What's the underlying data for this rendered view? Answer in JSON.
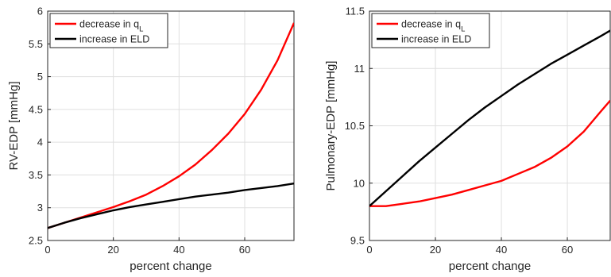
{
  "chart_data": [
    {
      "type": "line",
      "xlabel": "percent change",
      "ylabel": "RV-EDP [mmHg]",
      "xlim": [
        0,
        75
      ],
      "ylim": [
        2.5,
        6
      ],
      "xticks": [
        "0",
        "20",
        "40",
        "60"
      ],
      "yticks": [
        "2.5",
        "3",
        "3.5",
        "4",
        "4.5",
        "5",
        "5.5",
        "6"
      ],
      "grid": true,
      "legend_position": "top-left",
      "series": [
        {
          "name": "decrease in q",
          "subscript": "L",
          "color": "#ff0000",
          "x": [
            0,
            5,
            10,
            15,
            20,
            25,
            30,
            35,
            40,
            45,
            50,
            55,
            60,
            65,
            70,
            75
          ],
          "y": [
            2.69,
            2.77,
            2.85,
            2.93,
            3.01,
            3.1,
            3.2,
            3.33,
            3.48,
            3.66,
            3.88,
            4.13,
            4.43,
            4.8,
            5.25,
            5.82
          ]
        },
        {
          "name": "increase in ELD",
          "color": "#000000",
          "x": [
            0,
            5,
            10,
            15,
            20,
            25,
            30,
            35,
            40,
            45,
            50,
            55,
            60,
            65,
            70,
            75
          ],
          "y": [
            2.69,
            2.77,
            2.84,
            2.9,
            2.96,
            3.01,
            3.05,
            3.09,
            3.13,
            3.17,
            3.2,
            3.23,
            3.27,
            3.3,
            3.33,
            3.37
          ]
        }
      ]
    },
    {
      "type": "line",
      "xlabel": "percent change",
      "ylabel": "Pulmonary-EDP [mmHg]",
      "xlim": [
        0,
        73
      ],
      "ylim": [
        9.5,
        11.5
      ],
      "xticks": [
        "0",
        "20",
        "40",
        "60"
      ],
      "yticks": [
        "9.5",
        "10",
        "10.5",
        "11",
        "11.5"
      ],
      "grid": true,
      "legend_position": "top-left",
      "series": [
        {
          "name": "decrease in q",
          "subscript": "L",
          "color": "#ff0000",
          "x": [
            0,
            5,
            10,
            15,
            20,
            25,
            30,
            35,
            40,
            45,
            50,
            55,
            60,
            65,
            70,
            73
          ],
          "y": [
            9.8,
            9.8,
            9.82,
            9.84,
            9.87,
            9.9,
            9.94,
            9.98,
            10.02,
            10.08,
            10.14,
            10.22,
            10.32,
            10.45,
            10.62,
            10.72
          ]
        },
        {
          "name": "increase in ELD",
          "color": "#000000",
          "x": [
            0,
            5,
            10,
            15,
            20,
            25,
            30,
            35,
            40,
            45,
            50,
            55,
            60,
            65,
            70,
            73
          ],
          "y": [
            9.8,
            9.93,
            10.06,
            10.19,
            10.31,
            10.43,
            10.55,
            10.66,
            10.76,
            10.86,
            10.95,
            11.04,
            11.12,
            11.2,
            11.28,
            11.33
          ]
        }
      ]
    }
  ]
}
